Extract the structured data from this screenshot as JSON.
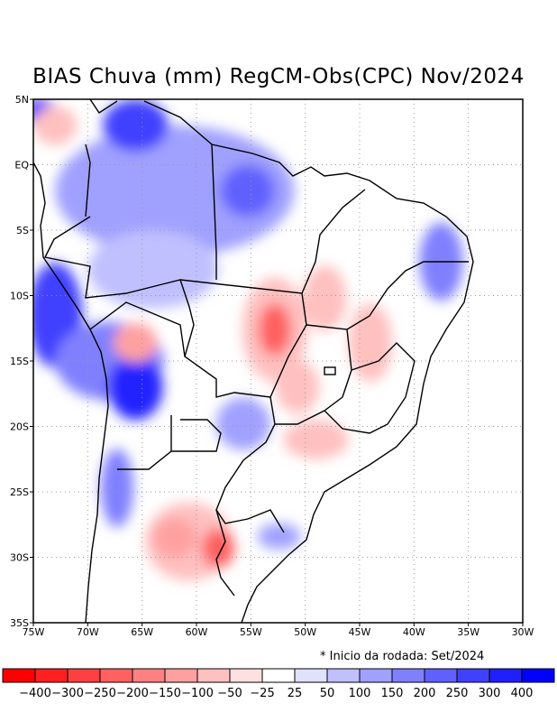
{
  "title": "BIAS Chuva (mm) RegCM-Obs(CPC) Nov/2024",
  "note": "* Inicio da rodada: Set/2024",
  "chart_data": {
    "type": "heatmap",
    "title": "BIAS Chuva (mm) RegCM-Obs(CPC) Nov/2024",
    "lon_range": [
      -75,
      -30
    ],
    "lat_range": [
      -35,
      5
    ],
    "x_ticks": [
      "75W",
      "70W",
      "65W",
      "60W",
      "55W",
      "50W",
      "45W",
      "40W",
      "35W",
      "30W"
    ],
    "y_ticks": [
      "5N",
      "EQ",
      "5S",
      "10S",
      "15S",
      "20S",
      "25S",
      "30S",
      "35S"
    ],
    "grid": true,
    "colorbar": {
      "labels": [
        "-400",
        "-300",
        "-250",
        "-200",
        "-150",
        "-100",
        "-50",
        "-25",
        "25",
        "50",
        "100",
        "150",
        "200",
        "250",
        "300",
        "400"
      ],
      "colors": [
        "#FF0000",
        "#FF2020",
        "#FF4040",
        "#FF6060",
        "#FF8080",
        "#FFA0A0",
        "#FFC0C0",
        "#FFE0E0",
        "#FFFFFF",
        "#E0E0FF",
        "#C0C0FF",
        "#A0A0FF",
        "#8080FF",
        "#6060FF",
        "#4040FF",
        "#2020FF",
        "#0000FF"
      ]
    },
    "regions": [
      {
        "lon": -62,
        "lat": -2,
        "rlon": 11,
        "rlat": 5,
        "value": 100
      },
      {
        "lon": -64,
        "lat": -8,
        "rlon": 6,
        "rlat": 3,
        "value": 75
      },
      {
        "lon": -65.6,
        "lat": 3,
        "rlon": 3,
        "rlat": 2,
        "value": 250
      },
      {
        "lon": -55.3,
        "lat": -2,
        "rlon": 2.5,
        "rlat": 2,
        "value": 200
      },
      {
        "lon": -74.3,
        "lat": 4,
        "rlon": 1.5,
        "rlat": 1,
        "value": 400
      },
      {
        "lon": -73,
        "lat": -11.5,
        "rlon": 2.5,
        "rlat": 4,
        "value": 250
      },
      {
        "lon": -68,
        "lat": -15,
        "rlon": 5,
        "rlat": 3,
        "value": 150
      },
      {
        "lon": -65.6,
        "lat": -17,
        "rlon": 2.5,
        "rlat": 2.5,
        "value": 300
      },
      {
        "lon": -55.7,
        "lat": -19.8,
        "rlon": 2.5,
        "rlat": 2,
        "value": 100
      },
      {
        "lon": -37.5,
        "lat": -7.4,
        "rlon": 2,
        "rlat": 3,
        "value": 150
      },
      {
        "lon": -67.3,
        "lat": -24.7,
        "rlon": 1.5,
        "rlat": 3,
        "value": 150
      },
      {
        "lon": -52.4,
        "lat": -28.4,
        "rlon": 2,
        "rlat": 1,
        "value": 100
      },
      {
        "lon": -73,
        "lat": 3,
        "rlon": 2,
        "rlat": 1.5,
        "value": -100
      },
      {
        "lon": -52.8,
        "lat": -12.6,
        "rlon": 3,
        "rlat": 4,
        "value": -100
      },
      {
        "lon": -52.8,
        "lat": -12.6,
        "rlon": 1.5,
        "rlat": 2,
        "value": -250
      },
      {
        "lon": -48.2,
        "lat": -10.2,
        "rlon": 2,
        "rlat": 2.5,
        "value": -100
      },
      {
        "lon": -44,
        "lat": -13.6,
        "rlon": 2,
        "rlat": 3,
        "value": -100
      },
      {
        "lon": -50.7,
        "lat": -17,
        "rlon": 2,
        "rlat": 2,
        "value": -100
      },
      {
        "lon": -49,
        "lat": -21,
        "rlon": 3,
        "rlat": 1.5,
        "value": -100
      },
      {
        "lon": -65.6,
        "lat": -13.6,
        "rlon": 2,
        "rlat": 1.5,
        "value": -150
      },
      {
        "lon": -60.7,
        "lat": -28.8,
        "rlon": 4,
        "rlat": 3,
        "value": -100
      },
      {
        "lon": -58,
        "lat": -29.3,
        "rlon": 1.5,
        "rlat": 1.5,
        "value": -250
      },
      {
        "lon": -62,
        "lat": -28.5,
        "rlon": 2,
        "rlat": 1.5,
        "value": -150
      }
    ]
  }
}
